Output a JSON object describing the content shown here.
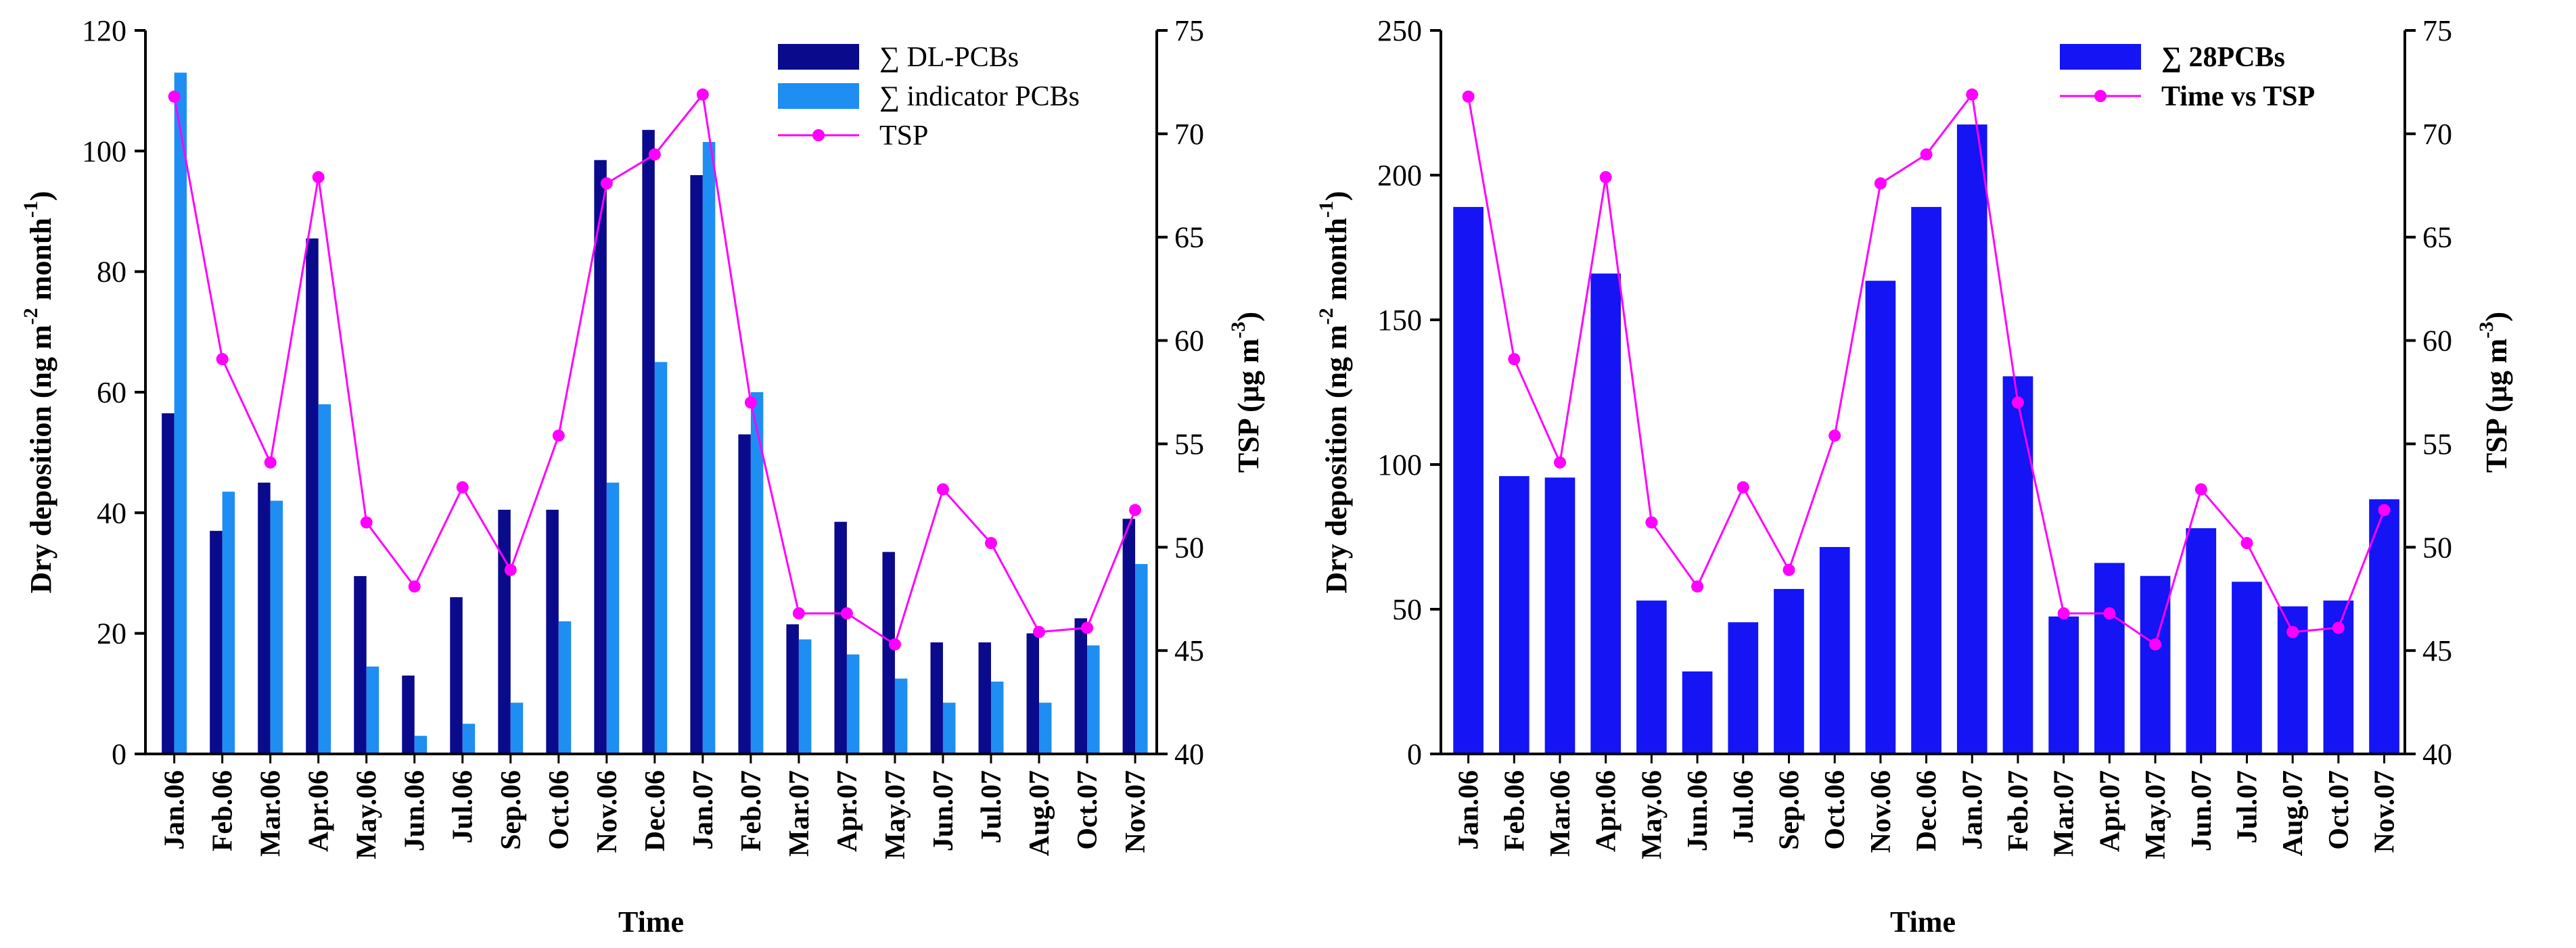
{
  "colors": {
    "dl": "#0a0a8c",
    "indicator": "#1e8ef2",
    "pcb28": "#1414f5",
    "tsp": "#ff00ff",
    "axis": "#000000"
  },
  "chart_data": [
    {
      "type": "bar",
      "title": "",
      "xlabel": "Time",
      "ylabel": {
        "main": "Dry deposition (ng m",
        "sup1": "-2",
        "mid": " month",
        "sup2": "-1",
        "end": ")"
      },
      "y2label": {
        "main": "TSP (μg m",
        "sup": "-3",
        "end": ")"
      },
      "categories": [
        "Jan.06",
        "Feb.06",
        "Mar.06",
        "Apr.06",
        "May.06",
        "Jun.06",
        "Jul.06",
        "Sep.06",
        "Oct.06",
        "Nov.06",
        "Dec.06",
        "Jan.07",
        "Feb.07",
        "Mar.07",
        "Apr.07",
        "May.07",
        "Jun.07",
        "Jul.07",
        "Aug.07",
        "Oct.07",
        "Nov.07"
      ],
      "ylim": [
        0,
        120
      ],
      "yticks": [
        0,
        20,
        40,
        60,
        80,
        100,
        120
      ],
      "y2lim": [
        40,
        75
      ],
      "y2ticks": [
        40,
        45,
        50,
        55,
        60,
        65,
        70,
        75
      ],
      "series": [
        {
          "name": "∑  DL-PCBs",
          "kind": "bar",
          "axis": "left",
          "values": [
            56.5,
            37,
            45,
            85.5,
            29.5,
            13,
            26,
            40.5,
            40.5,
            98.5,
            103.5,
            96,
            53,
            21.5,
            38.5,
            33.5,
            18.5,
            18.5,
            20,
            22.5,
            39
          ]
        },
        {
          "name": "∑  indicator PCBs",
          "kind": "bar",
          "axis": "left",
          "values": [
            113,
            43.5,
            42,
            58,
            14.5,
            3,
            5,
            8.5,
            22,
            45,
            65,
            101.5,
            60,
            19,
            16.5,
            12.5,
            8.5,
            12,
            8.5,
            18,
            31.5
          ]
        },
        {
          "name": "TSP",
          "kind": "line",
          "axis": "right",
          "values": [
            71.8,
            59.1,
            54.1,
            67.9,
            51.2,
            48.1,
            52.9,
            48.9,
            55.4,
            67.6,
            69.0,
            71.9,
            57.0,
            46.8,
            46.8,
            45.3,
            52.8,
            50.2,
            45.9,
            46.1,
            51.8
          ]
        }
      ],
      "legend_position": "top-right"
    },
    {
      "type": "bar",
      "title": "",
      "xlabel": "Time",
      "ylabel": {
        "main": "Dry deposition (ng m",
        "sup1": "-2",
        "mid": " month",
        "sup2": "-1",
        "end": ")"
      },
      "y2label": {
        "main": "TSP (μg m",
        "sup": "-3",
        "end": ")"
      },
      "categories": [
        "Jan.06",
        "Feb.06",
        "Mar.06",
        "Apr.06",
        "May.06",
        "Jun.06",
        "Jul.06",
        "Sep.06",
        "Oct.06",
        "Nov.06",
        "Dec.06",
        "Jan.07",
        "Feb.07",
        "Mar.07",
        "Apr.07",
        "May.07",
        "Jun.07",
        "Jul.07",
        "Aug.07",
        "Oct.07",
        "Nov.07"
      ],
      "ylim": [
        0,
        250
      ],
      "yticks": [
        0,
        50,
        100,
        150,
        200,
        250
      ],
      "y2lim": [
        40,
        75
      ],
      "y2ticks": [
        40,
        45,
        50,
        55,
        60,
        65,
        70,
        75
      ],
      "series": [
        {
          "name": "∑  28PCBs",
          "kind": "bar",
          "axis": "left",
          "values": [
            189,
            96,
            95.5,
            166,
            53,
            28.5,
            45.5,
            57,
            71.5,
            163.5,
            189,
            217.5,
            130.5,
            47.5,
            66,
            61.5,
            78,
            59.5,
            51,
            53,
            88
          ]
        },
        {
          "name": "Time vs TSP",
          "kind": "line",
          "axis": "right",
          "values": [
            71.8,
            59.1,
            54.1,
            67.9,
            51.2,
            48.1,
            52.9,
            48.9,
            55.4,
            67.6,
            69.0,
            71.9,
            57.0,
            46.8,
            46.8,
            45.3,
            52.8,
            50.2,
            45.9,
            46.1,
            51.8
          ]
        }
      ],
      "legend_position": "top-right"
    }
  ]
}
